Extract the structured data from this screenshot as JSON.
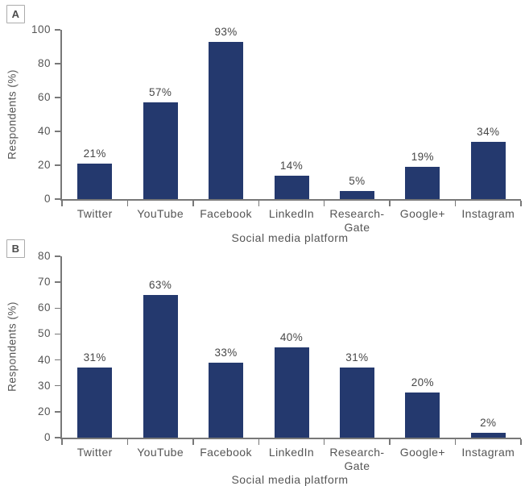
{
  "figure": {
    "background": "#ffffff",
    "bar_color": "#24396e",
    "axis_color": "#787878",
    "label_color": "#555555"
  },
  "chart_data": [
    {
      "type": "bar",
      "panel_label": "A",
      "categories": [
        "Twitter",
        "YouTube",
        "Facebook",
        "LinkedIn",
        "Research-Gate",
        "Google+",
        "Instagram"
      ],
      "category_lines": [
        [
          "Twitter"
        ],
        [
          "YouTube"
        ],
        [
          "Facebook"
        ],
        [
          "LinkedIn"
        ],
        [
          "Research-",
          "Gate"
        ],
        [
          "Google+"
        ],
        [
          "Instagram"
        ]
      ],
      "values": [
        21,
        57,
        93,
        14,
        5,
        19,
        34
      ],
      "data_labels": [
        "21%",
        "57%",
        "93%",
        "14%",
        "5%",
        "19%",
        "34%"
      ],
      "xlabel": "Social media platform",
      "ylabel": "Respondents (%)",
      "ylim": [
        0,
        100
      ],
      "yticks": [
        0,
        20,
        40,
        60,
        80,
        100
      ],
      "bar_color": "#24396e",
      "grid": "off",
      "legend": "none"
    },
    {
      "type": "bar",
      "panel_label": "B",
      "categories": [
        "Twitter",
        "YouTube",
        "Facebook",
        "LinkedIn",
        "Research-Gate",
        "Google+",
        "Instagram"
      ],
      "category_lines": [
        [
          "Twitter"
        ],
        [
          "YouTube"
        ],
        [
          "Facebook"
        ],
        [
          "LinkedIn"
        ],
        [
          "Research-",
          "Gate"
        ],
        [
          "Google+"
        ],
        [
          "Instagram"
        ]
      ],
      "values": [
        31,
        63,
        33,
        40,
        31,
        20,
        2
      ],
      "data_labels": [
        "31%",
        "63%",
        "33%",
        "40%",
        "31%",
        "20%",
        "2%"
      ],
      "xlabel": "Social media platform",
      "ylabel": "Respondents (%)",
      "ylim": [
        0,
        80
      ],
      "yticks": [
        0,
        20,
        30,
        40,
        50,
        60,
        70,
        80
      ],
      "bar_color": "#24396e",
      "grid": "off",
      "legend": "none"
    }
  ]
}
